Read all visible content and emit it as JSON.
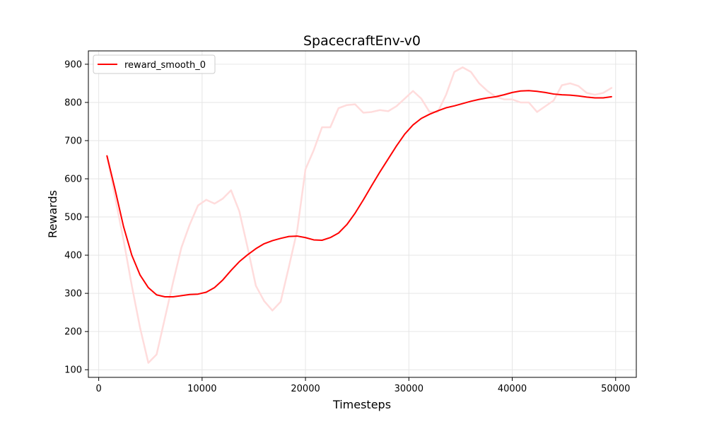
{
  "chart_data": {
    "type": "line",
    "title": "SpacecraftEnv-v0",
    "xlabel": "Timesteps",
    "ylabel": "Rewards",
    "xlim": [
      -1000,
      52000
    ],
    "ylim": [
      80,
      935
    ],
    "xticks": [
      0,
      10000,
      20000,
      30000,
      40000,
      50000
    ],
    "yticks": [
      100,
      200,
      300,
      400,
      500,
      600,
      700,
      800,
      900
    ],
    "grid": true,
    "legend": {
      "position": "top-left",
      "entries": [
        "reward_smooth_0"
      ]
    },
    "series": [
      {
        "name": "reward_smooth_0",
        "color": "#ff0000",
        "x": [
          800,
          1600,
          2400,
          3200,
          4000,
          4800,
          5600,
          6400,
          7200,
          8000,
          8800,
          9600,
          10400,
          11200,
          12000,
          12800,
          13600,
          14400,
          15200,
          16000,
          16800,
          17600,
          18400,
          19200,
          20000,
          20800,
          21600,
          22400,
          23200,
          24000,
          24800,
          25600,
          26400,
          27200,
          28000,
          28800,
          29600,
          30400,
          31200,
          32000,
          32800,
          33600,
          34400,
          35200,
          36000,
          36800,
          37600,
          38400,
          39200,
          40000,
          40800,
          41600,
          42400,
          43200,
          44000,
          44800,
          45600,
          46400,
          47200,
          48000,
          48800,
          49600
        ],
        "y": [
          660,
          570,
          475,
          400,
          348,
          315,
          296,
          291,
          291,
          294,
          297,
          298,
          303,
          315,
          335,
          360,
          383,
          401,
          417,
          430,
          438,
          444,
          449,
          450,
          446,
          440,
          439,
          446,
          458,
          480,
          510,
          545,
          582,
          618,
          652,
          686,
          717,
          741,
          758,
          769,
          778,
          786,
          791,
          797,
          803,
          808,
          812,
          815,
          820,
          826,
          830,
          831,
          829,
          826,
          822,
          820,
          819,
          817,
          814,
          812,
          812,
          815
        ]
      },
      {
        "name": "",
        "color": "#ffdcdc",
        "x": [
          800,
          1600,
          2400,
          3200,
          4000,
          4800,
          5600,
          6400,
          7200,
          8000,
          8800,
          9600,
          10400,
          11200,
          12000,
          12800,
          13600,
          14400,
          15200,
          16000,
          16800,
          17600,
          18400,
          19200,
          20000,
          20800,
          21600,
          22400,
          23200,
          24000,
          24800,
          25600,
          26400,
          27200,
          28000,
          28800,
          29600,
          30400,
          31200,
          32000,
          32800,
          33600,
          34400,
          35200,
          36000,
          36800,
          37600,
          38400,
          39200,
          40000,
          40800,
          41600,
          42400,
          43200,
          44000,
          44800,
          45600,
          46400,
          47200,
          48000,
          48800,
          49600
        ],
        "y": [
          660,
          550,
          440,
          320,
          210,
          118,
          140,
          235,
          330,
          420,
          480,
          530,
          545,
          535,
          548,
          570,
          515,
          420,
          320,
          280,
          255,
          278,
          370,
          465,
          625,
          675,
          735,
          735,
          785,
          793,
          795,
          773,
          775,
          780,
          777,
          790,
          810,
          830,
          810,
          775,
          775,
          820,
          880,
          892,
          880,
          850,
          830,
          815,
          808,
          808,
          800,
          800,
          775,
          790,
          805,
          845,
          850,
          843,
          825,
          820,
          825,
          838
        ]
      }
    ]
  }
}
